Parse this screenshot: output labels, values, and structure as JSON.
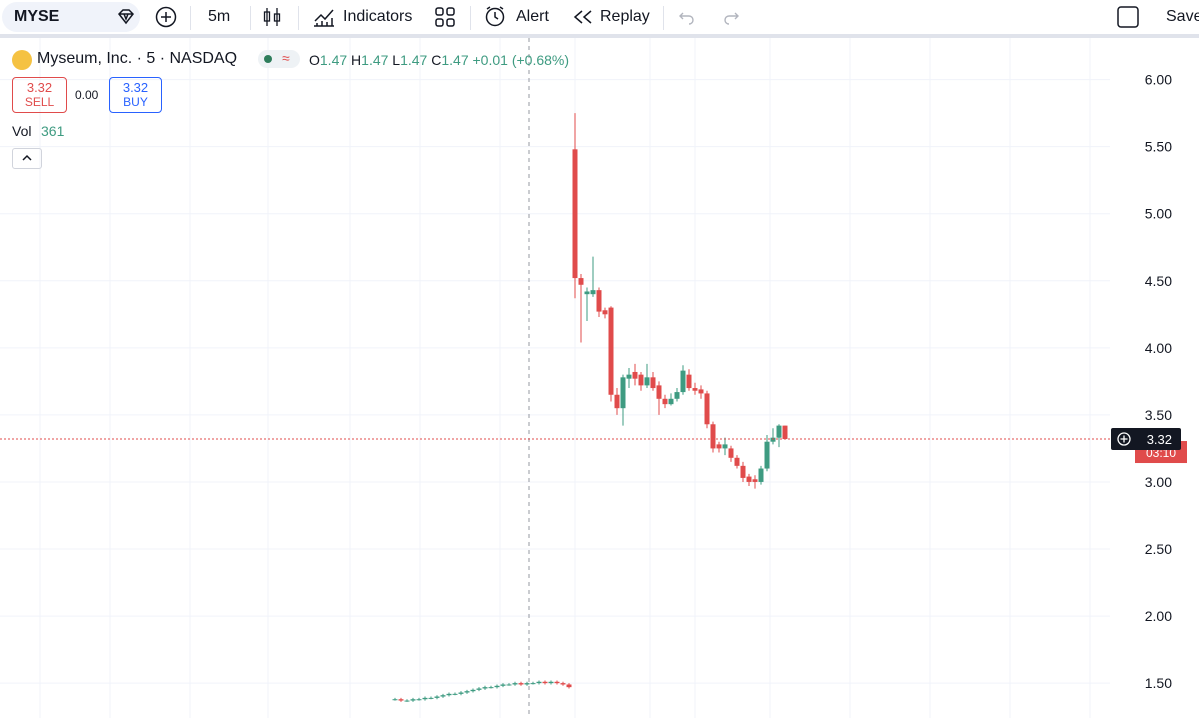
{
  "toolbar": {
    "symbol": "MYSE",
    "interval": "5m",
    "indicators": "Indicators",
    "alert": "Alert",
    "replay": "Replay",
    "save": "Save"
  },
  "legend": {
    "title": "Myseum, Inc. · 5 · NASDAQ",
    "o_label": "O",
    "o": "1.47",
    "h_label": "H",
    "h": "1.47",
    "l_label": "L",
    "l": "1.47",
    "c_label": "C",
    "c": "1.47",
    "change": "+0.01 (+0.68%)"
  },
  "trade": {
    "sell_price": "3.32",
    "sell": "SELL",
    "spread": "0.00",
    "buy_price": "3.32",
    "buy": "BUY"
  },
  "volume": {
    "label": "Vol",
    "value": "361"
  },
  "chart_data": {
    "type": "candlestick",
    "up_color": "#3e9b81",
    "down_color": "#e04b4b",
    "open": [
      1.38,
      1.38,
      1.37,
      1.37,
      1.38,
      1.38,
      1.39,
      1.39,
      1.4,
      1.41,
      1.42,
      1.42,
      1.43,
      1.44,
      1.45,
      1.46,
      1.47,
      1.47,
      1.48,
      1.49,
      1.49,
      1.5,
      1.49,
      1.5,
      1.5,
      1.51,
      1.5,
      1.51,
      1.5,
      1.49,
      5.48,
      4.52,
      4.4,
      4.4,
      4.43,
      4.28,
      4.3,
      3.65,
      3.55,
      3.77,
      3.82,
      3.8,
      3.72,
      3.78,
      3.72,
      3.62,
      3.58,
      3.62,
      3.67,
      3.8,
      3.7,
      3.69,
      3.66,
      3.43,
      3.28,
      3.25,
      3.25,
      3.18,
      3.12,
      3.04,
      3.02,
      3.0,
      3.1,
      3.3,
      3.33,
      3.42
    ],
    "high": [
      1.39,
      1.39,
      1.38,
      1.39,
      1.39,
      1.4,
      1.4,
      1.41,
      1.42,
      1.43,
      1.43,
      1.44,
      1.45,
      1.46,
      1.47,
      1.48,
      1.48,
      1.49,
      1.5,
      1.5,
      1.51,
      1.51,
      1.51,
      1.51,
      1.52,
      1.52,
      1.52,
      1.52,
      1.51,
      1.5,
      5.75,
      4.55,
      4.45,
      4.68,
      4.45,
      4.3,
      4.31,
      3.7,
      3.8,
      3.85,
      3.88,
      3.82,
      3.88,
      3.82,
      3.75,
      3.65,
      3.66,
      3.7,
      3.87,
      3.84,
      3.74,
      3.72,
      3.68,
      3.45,
      3.3,
      3.33,
      3.27,
      3.2,
      3.15,
      3.06,
      3.05,
      3.12,
      3.35,
      3.4,
      3.43,
      3.42
    ],
    "low": [
      1.37,
      1.36,
      1.36,
      1.36,
      1.37,
      1.37,
      1.38,
      1.38,
      1.39,
      1.4,
      1.41,
      1.41,
      1.42,
      1.43,
      1.44,
      1.45,
      1.46,
      1.46,
      1.47,
      1.48,
      1.48,
      1.48,
      1.48,
      1.49,
      1.49,
      1.49,
      1.49,
      1.49,
      1.48,
      1.46,
      4.37,
      4.04,
      4.2,
      4.38,
      4.23,
      4.22,
      3.6,
      3.5,
      3.42,
      3.7,
      3.72,
      3.68,
      3.7,
      3.68,
      3.5,
      3.55,
      3.57,
      3.6,
      3.65,
      3.68,
      3.65,
      3.62,
      3.4,
      3.22,
      3.22,
      3.2,
      3.15,
      3.1,
      3.0,
      2.97,
      2.95,
      2.98,
      3.08,
      3.28,
      3.26,
      3.32
    ],
    "close": [
      1.38,
      1.37,
      1.37,
      1.38,
      1.38,
      1.39,
      1.39,
      1.4,
      1.41,
      1.42,
      1.42,
      1.43,
      1.44,
      1.45,
      1.46,
      1.47,
      1.47,
      1.48,
      1.49,
      1.49,
      1.5,
      1.49,
      1.5,
      1.5,
      1.51,
      1.5,
      1.51,
      1.5,
      1.49,
      1.47,
      4.52,
      4.47,
      4.42,
      4.43,
      4.27,
      4.25,
      3.65,
      3.55,
      3.78,
      3.8,
      3.77,
      3.72,
      3.78,
      3.7,
      3.62,
      3.58,
      3.62,
      3.67,
      3.83,
      3.7,
      3.68,
      3.66,
      3.43,
      3.25,
      3.25,
      3.28,
      3.18,
      3.12,
      3.03,
      3.0,
      3.0,
      3.1,
      3.3,
      3.33,
      3.42,
      3.32
    ],
    "ylim": [
      1.24,
      6.31
    ],
    "yticks": [
      {
        "value": 1.5,
        "label": "1.50"
      },
      {
        "value": 2,
        "label": "2.00"
      },
      {
        "value": 2.5,
        "label": "2.50"
      },
      {
        "value": 3,
        "label": "3.00"
      },
      {
        "value": 3.5,
        "label": "3.50"
      },
      {
        "value": 4,
        "label": "4.00"
      },
      {
        "value": 4.5,
        "label": "4.50"
      },
      {
        "value": 5,
        "label": "5.00"
      },
      {
        "value": 5.5,
        "label": "5.50"
      },
      {
        "value": 6,
        "label": "6.00"
      }
    ],
    "grid": true,
    "last_price": 3.32,
    "countdown": "03:10"
  }
}
